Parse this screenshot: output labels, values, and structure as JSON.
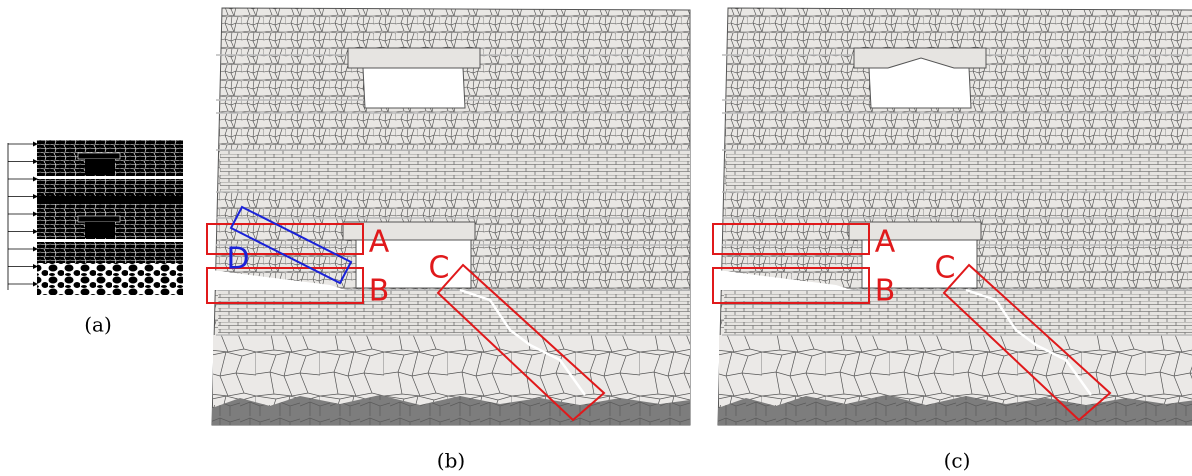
{
  "figure": {
    "panels": [
      {
        "label": "(a)"
      },
      {
        "label": "(b)",
        "regions": [
          "A",
          "B",
          "C",
          "D"
        ]
      },
      {
        "label": "(c)",
        "regions": [
          "A",
          "B",
          "C"
        ]
      }
    ]
  }
}
